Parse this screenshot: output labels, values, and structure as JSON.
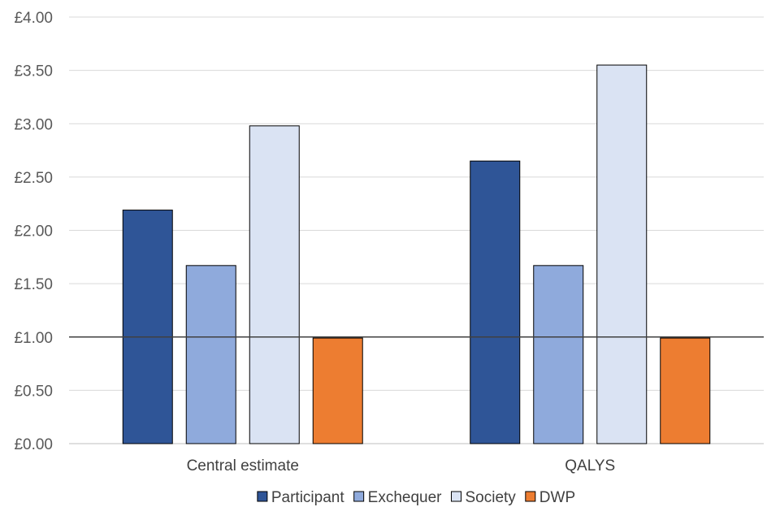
{
  "chart_data": {
    "type": "bar",
    "title": "",
    "xlabel": "",
    "ylabel": "",
    "categories": [
      "Central estimate",
      "QALYS"
    ],
    "series": [
      {
        "name": "Participant",
        "color": "#2F5597",
        "values": [
          2.19,
          2.65
        ]
      },
      {
        "name": "Exchequer",
        "color": "#8FAADC",
        "values": [
          1.67,
          1.67
        ]
      },
      {
        "name": "Society",
        "color": "#DAE3F3",
        "values": [
          2.98,
          3.55
        ]
      },
      {
        "name": "DWP",
        "color": "#ED7D31",
        "values": [
          0.99,
          0.99
        ]
      }
    ],
    "ylim": [
      0,
      4
    ],
    "ytick_values": [
      0,
      0.5,
      1,
      1.5,
      2,
      2.5,
      3,
      3.5,
      4
    ],
    "ytick_labels": [
      "£0.00",
      "£0.50",
      "£1.00",
      "£1.50",
      "£2.00",
      "£2.50",
      "£3.00",
      "£3.50",
      "£4.00"
    ],
    "reference_line": 1.0,
    "grid": true,
    "legend_position": "bottom"
  }
}
